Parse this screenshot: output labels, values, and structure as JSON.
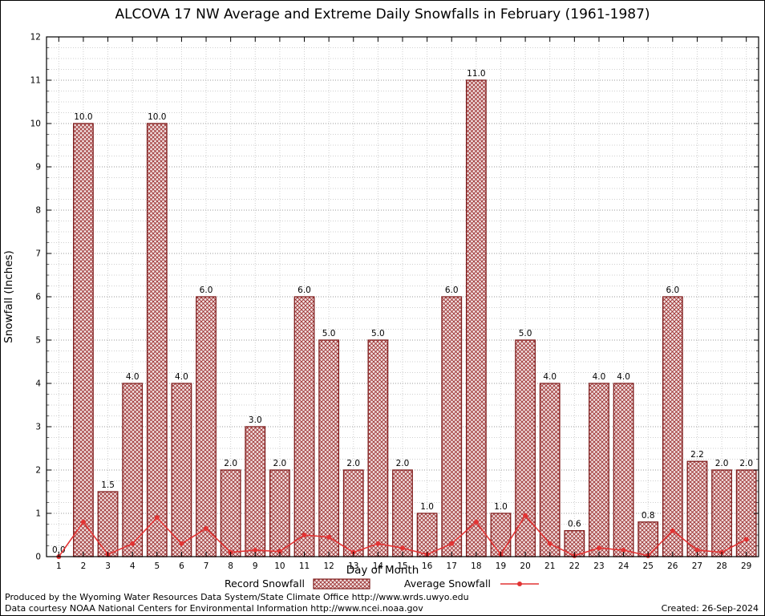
{
  "title": "ALCOVA 17 NW Average and Extreme Daily Snowfalls in February (1961-1987)",
  "x_axis_label": "Day of Month",
  "y_axis_label": "Snowfall (Inches)",
  "legend": {
    "record_label": "Record Snowfall",
    "average_label": "Average Snowfall"
  },
  "footer": {
    "line1": "Produced by the Wyoming Water Resources Data System/State Climate Office http://www.wrds.uwyo.edu",
    "line2": "Data courtesy NOAA National Centers for Environmental Information http://www.ncei.noaa.gov",
    "created": "Created: 26-Sep-2024"
  },
  "colors": {
    "bar_outline": "#7f1d1d",
    "hatch": "#9b2f2f",
    "hatch_bg": "#f3e4e4",
    "line": "#e23434",
    "grid_major": "#9a9a9a",
    "grid_minor": "#cfcfcf"
  },
  "chart_data": {
    "type": "bar",
    "title": "ALCOVA 17 NW Average and Extreme Daily Snowfalls in February (1961-1987)",
    "xlabel": "Day of Month",
    "ylabel": "Snowfall (Inches)",
    "ylim": [
      0,
      12
    ],
    "grid": true,
    "legend_position": "bottom",
    "x": [
      1,
      2,
      3,
      4,
      5,
      6,
      7,
      8,
      9,
      10,
      11,
      12,
      13,
      14,
      15,
      16,
      17,
      18,
      19,
      20,
      21,
      22,
      23,
      24,
      25,
      26,
      27,
      28,
      29
    ],
    "series": [
      {
        "name": "Record Snowfall",
        "type": "bar",
        "color": "#7f1d1d",
        "values": [
          0.0,
          10.0,
          1.5,
          4.0,
          10.0,
          4.0,
          6.0,
          2.0,
          3.0,
          2.0,
          6.0,
          5.0,
          2.0,
          5.0,
          2.0,
          1.0,
          6.0,
          11.0,
          1.0,
          5.0,
          4.0,
          0.6,
          4.0,
          4.0,
          0.8,
          6.0,
          2.2,
          2.0,
          2.0
        ]
      },
      {
        "name": "Average Snowfall",
        "type": "line",
        "color": "#e23434",
        "values": [
          0.0,
          0.8,
          0.05,
          0.3,
          0.9,
          0.3,
          0.65,
          0.1,
          0.15,
          0.12,
          0.5,
          0.45,
          0.1,
          0.3,
          0.2,
          0.05,
          0.3,
          0.8,
          0.05,
          0.95,
          0.3,
          0.02,
          0.2,
          0.15,
          0.02,
          0.6,
          0.15,
          0.1,
          0.4
        ]
      }
    ]
  }
}
